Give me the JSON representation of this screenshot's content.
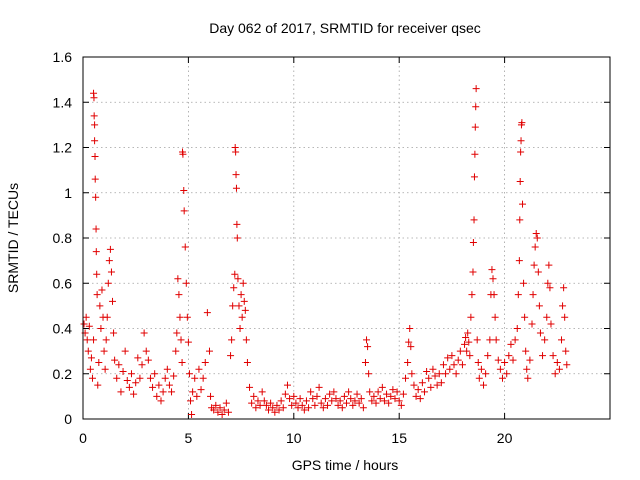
{
  "chart_data": {
    "type": "scatter",
    "title": "Day 062 of 2017, SRMTID for receiver qsec",
    "xlabel": "GPS time / hours",
    "ylabel": "SRMTID / TECUs",
    "xlim": [
      0,
      25
    ],
    "ylim": [
      0,
      1.6
    ],
    "x_ticks": [
      0,
      5,
      10,
      15,
      20
    ],
    "x_tick_labels": [
      "0",
      "5",
      "10",
      "15",
      "20"
    ],
    "y_ticks": [
      0,
      0.2,
      0.4,
      0.6,
      0.8,
      1,
      1.2,
      1.4,
      1.6
    ],
    "y_tick_labels": [
      "0",
      "0.2",
      "0.4",
      "0.6",
      "0.8",
      "1",
      "1.2",
      "1.4",
      "1.6"
    ],
    "grid": true,
    "marker": "plus",
    "color": "#e00000",
    "series": [
      {
        "name": "SRMTID",
        "points": [
          [
            0.05,
            0.42
          ],
          [
            0.1,
            0.38
          ],
          [
            0.15,
            0.45
          ],
          [
            0.2,
            0.35
          ],
          [
            0.25,
            0.3
          ],
          [
            0.3,
            0.41
          ],
          [
            0.35,
            0.22
          ],
          [
            0.4,
            0.27
          ],
          [
            0.45,
            0.18
          ],
          [
            0.5,
            0.35
          ],
          [
            0.5,
            1.44
          ],
          [
            0.52,
            1.42
          ],
          [
            0.53,
            1.34
          ],
          [
            0.55,
            1.3
          ],
          [
            0.55,
            1.23
          ],
          [
            0.57,
            1.16
          ],
          [
            0.58,
            1.06
          ],
          [
            0.6,
            0.98
          ],
          [
            0.62,
            0.84
          ],
          [
            0.63,
            0.74
          ],
          [
            0.65,
            0.64
          ],
          [
            0.67,
            0.55
          ],
          [
            0.7,
            0.15
          ],
          [
            0.75,
            0.25
          ],
          [
            0.8,
            0.5
          ],
          [
            0.85,
            0.4
          ],
          [
            0.9,
            0.57
          ],
          [
            0.95,
            0.45
          ],
          [
            1.0,
            0.3
          ],
          [
            1.05,
            0.22
          ],
          [
            1.1,
            0.35
          ],
          [
            1.15,
            0.45
          ],
          [
            1.2,
            0.6
          ],
          [
            1.25,
            0.7
          ],
          [
            1.3,
            0.75
          ],
          [
            1.35,
            0.65
          ],
          [
            1.4,
            0.52
          ],
          [
            1.45,
            0.38
          ],
          [
            1.5,
            0.26
          ],
          [
            1.6,
            0.18
          ],
          [
            1.7,
            0.24
          ],
          [
            1.8,
            0.12
          ],
          [
            1.9,
            0.21
          ],
          [
            2.0,
            0.3
          ],
          [
            2.1,
            0.17
          ],
          [
            2.2,
            0.14
          ],
          [
            2.3,
            0.2
          ],
          [
            2.4,
            0.11
          ],
          [
            2.5,
            0.16
          ],
          [
            2.6,
            0.27
          ],
          [
            2.7,
            0.18
          ],
          [
            2.8,
            0.24
          ],
          [
            2.9,
            0.38
          ],
          [
            3.0,
            0.3
          ],
          [
            3.1,
            0.26
          ],
          [
            3.2,
            0.18
          ],
          [
            3.3,
            0.14
          ],
          [
            3.4,
            0.2
          ],
          [
            3.5,
            0.1
          ],
          [
            3.6,
            0.15
          ],
          [
            3.7,
            0.08
          ],
          [
            3.8,
            0.12
          ],
          [
            3.9,
            0.18
          ],
          [
            4.0,
            0.22
          ],
          [
            4.1,
            0.15
          ],
          [
            4.2,
            0.12
          ],
          [
            4.3,
            0.19
          ],
          [
            4.4,
            0.3
          ],
          [
            4.45,
            0.38
          ],
          [
            4.5,
            0.62
          ],
          [
            4.55,
            0.55
          ],
          [
            4.6,
            0.45
          ],
          [
            4.65,
            0.35
          ],
          [
            4.7,
            0.25
          ],
          [
            4.72,
            1.18
          ],
          [
            4.74,
            1.17
          ],
          [
            4.78,
            1.01
          ],
          [
            4.8,
            0.92
          ],
          [
            4.85,
            0.76
          ],
          [
            4.9,
            0.6
          ],
          [
            4.95,
            0.45
          ],
          [
            5.0,
            0.34
          ],
          [
            5.05,
            0.2
          ],
          [
            5.1,
            0.08
          ],
          [
            5.15,
            0.02
          ],
          [
            5.2,
            0.12
          ],
          [
            5.3,
            0.18
          ],
          [
            5.4,
            0.1
          ],
          [
            5.5,
            0.22
          ],
          [
            5.6,
            0.13
          ],
          [
            5.7,
            0.18
          ],
          [
            5.8,
            0.25
          ],
          [
            5.9,
            0.47
          ],
          [
            6.0,
            0.3
          ],
          [
            6.05,
            0.1
          ],
          [
            6.1,
            0.05
          ],
          [
            6.2,
            0.04
          ],
          [
            6.3,
            0.06
          ],
          [
            6.4,
            0.03
          ],
          [
            6.5,
            0.05
          ],
          [
            6.6,
            0.02
          ],
          [
            6.7,
            0.04
          ],
          [
            6.8,
            0.07
          ],
          [
            6.9,
            0.03
          ],
          [
            7.0,
            0.28
          ],
          [
            7.05,
            0.35
          ],
          [
            7.1,
            0.5
          ],
          [
            7.15,
            0.58
          ],
          [
            7.2,
            0.64
          ],
          [
            7.22,
            1.2
          ],
          [
            7.24,
            1.18
          ],
          [
            7.26,
            1.08
          ],
          [
            7.28,
            1.02
          ],
          [
            7.3,
            0.86
          ],
          [
            7.32,
            0.8
          ],
          [
            7.35,
            0.62
          ],
          [
            7.4,
            0.5
          ],
          [
            7.45,
            0.4
          ],
          [
            7.5,
            0.55
          ],
          [
            7.55,
            0.45
          ],
          [
            7.6,
            0.6
          ],
          [
            7.65,
            0.52
          ],
          [
            7.7,
            0.48
          ],
          [
            7.75,
            0.35
          ],
          [
            7.8,
            0.25
          ],
          [
            7.9,
            0.14
          ],
          [
            8.0,
            0.07
          ],
          [
            8.1,
            0.1
          ],
          [
            8.2,
            0.05
          ],
          [
            8.3,
            0.08
          ],
          [
            8.4,
            0.06
          ],
          [
            8.5,
            0.12
          ],
          [
            8.6,
            0.08
          ],
          [
            8.7,
            0.06
          ],
          [
            8.8,
            0.04
          ],
          [
            8.9,
            0.07
          ],
          [
            9.0,
            0.05
          ],
          [
            9.1,
            0.03
          ],
          [
            9.2,
            0.06
          ],
          [
            9.3,
            0.04
          ],
          [
            9.4,
            0.08
          ],
          [
            9.5,
            0.05
          ],
          [
            9.6,
            0.11
          ],
          [
            9.7,
            0.15
          ],
          [
            9.8,
            0.09
          ],
          [
            9.9,
            0.06
          ],
          [
            10.0,
            0.1
          ],
          [
            10.1,
            0.07
          ],
          [
            10.2,
            0.05
          ],
          [
            10.3,
            0.09
          ],
          [
            10.4,
            0.06
          ],
          [
            10.5,
            0.04
          ],
          [
            10.6,
            0.08
          ],
          [
            10.7,
            0.05
          ],
          [
            10.8,
            0.12
          ],
          [
            10.9,
            0.09
          ],
          [
            11.0,
            0.06
          ],
          [
            11.1,
            0.1
          ],
          [
            11.2,
            0.14
          ],
          [
            11.3,
            0.07
          ],
          [
            11.4,
            0.05
          ],
          [
            11.5,
            0.09
          ],
          [
            11.6,
            0.06
          ],
          [
            11.7,
            0.11
          ],
          [
            11.8,
            0.08
          ],
          [
            11.9,
            0.12
          ],
          [
            12.0,
            0.09
          ],
          [
            12.1,
            0.06
          ],
          [
            12.2,
            0.08
          ],
          [
            12.3,
            0.05
          ],
          [
            12.4,
            0.1
          ],
          [
            12.5,
            0.07
          ],
          [
            12.6,
            0.12
          ],
          [
            12.7,
            0.09
          ],
          [
            12.8,
            0.06
          ],
          [
            12.9,
            0.08
          ],
          [
            13.0,
            0.11
          ],
          [
            13.1,
            0.07
          ],
          [
            13.2,
            0.09
          ],
          [
            13.3,
            0.05
          ],
          [
            13.4,
            0.25
          ],
          [
            13.45,
            0.35
          ],
          [
            13.5,
            0.32
          ],
          [
            13.55,
            0.2
          ],
          [
            13.6,
            0.12
          ],
          [
            13.7,
            0.08
          ],
          [
            13.8,
            0.1
          ],
          [
            13.9,
            0.07
          ],
          [
            14.0,
            0.12
          ],
          [
            14.1,
            0.09
          ],
          [
            14.2,
            0.14
          ],
          [
            14.3,
            0.08
          ],
          [
            14.4,
            0.11
          ],
          [
            14.5,
            0.07
          ],
          [
            14.6,
            0.1
          ],
          [
            14.7,
            0.13
          ],
          [
            14.8,
            0.09
          ],
          [
            14.9,
            0.12
          ],
          [
            15.0,
            0.08
          ],
          [
            15.1,
            0.06
          ],
          [
            15.2,
            0.11
          ],
          [
            15.3,
            0.18
          ],
          [
            15.4,
            0.25
          ],
          [
            15.45,
            0.34
          ],
          [
            15.5,
            0.4
          ],
          [
            15.55,
            0.32
          ],
          [
            15.6,
            0.2
          ],
          [
            15.7,
            0.15
          ],
          [
            15.8,
            0.1
          ],
          [
            15.9,
            0.13
          ],
          [
            16.0,
            0.09
          ],
          [
            16.1,
            0.16
          ],
          [
            16.2,
            0.12
          ],
          [
            16.3,
            0.21
          ],
          [
            16.4,
            0.18
          ],
          [
            16.5,
            0.14
          ],
          [
            16.6,
            0.22
          ],
          [
            16.7,
            0.19
          ],
          [
            16.8,
            0.15
          ],
          [
            16.9,
            0.2
          ],
          [
            17.0,
            0.16
          ],
          [
            17.1,
            0.24
          ],
          [
            17.2,
            0.2
          ],
          [
            17.3,
            0.27
          ],
          [
            17.4,
            0.22
          ],
          [
            17.5,
            0.28
          ],
          [
            17.6,
            0.24
          ],
          [
            17.7,
            0.2
          ],
          [
            17.8,
            0.26
          ],
          [
            17.9,
            0.3
          ],
          [
            18.0,
            0.24
          ],
          [
            18.1,
            0.33
          ],
          [
            18.15,
            0.36
          ],
          [
            18.2,
            0.3
          ],
          [
            18.25,
            0.38
          ],
          [
            18.3,
            0.34
          ],
          [
            18.35,
            0.28
          ],
          [
            18.4,
            0.45
          ],
          [
            18.45,
            0.55
          ],
          [
            18.5,
            0.65
          ],
          [
            18.52,
            0.78
          ],
          [
            18.55,
            0.88
          ],
          [
            18.57,
            1.07
          ],
          [
            18.59,
            1.17
          ],
          [
            18.61,
            1.29
          ],
          [
            18.63,
            1.38
          ],
          [
            18.65,
            1.46
          ],
          [
            18.7,
            0.35
          ],
          [
            18.75,
            0.25
          ],
          [
            18.8,
            0.18
          ],
          [
            18.9,
            0.22
          ],
          [
            19.0,
            0.15
          ],
          [
            19.1,
            0.2
          ],
          [
            19.2,
            0.28
          ],
          [
            19.3,
            0.35
          ],
          [
            19.35,
            0.55
          ],
          [
            19.4,
            0.66
          ],
          [
            19.45,
            0.62
          ],
          [
            19.5,
            0.55
          ],
          [
            19.55,
            0.45
          ],
          [
            19.6,
            0.35
          ],
          [
            19.7,
            0.26
          ],
          [
            19.8,
            0.22
          ],
          [
            19.9,
            0.18
          ],
          [
            20.0,
            0.25
          ],
          [
            20.1,
            0.2
          ],
          [
            20.2,
            0.28
          ],
          [
            20.3,
            0.33
          ],
          [
            20.4,
            0.26
          ],
          [
            20.5,
            0.35
          ],
          [
            20.6,
            0.4
          ],
          [
            20.65,
            0.55
          ],
          [
            20.7,
            0.7
          ],
          [
            20.72,
            0.88
          ],
          [
            20.74,
            1.05
          ],
          [
            20.76,
            1.18
          ],
          [
            20.78,
            1.23
          ],
          [
            20.8,
            1.3
          ],
          [
            20.82,
            1.31
          ],
          [
            20.85,
            0.95
          ],
          [
            20.9,
            0.6
          ],
          [
            20.95,
            0.45
          ],
          [
            21.0,
            0.3
          ],
          [
            21.05,
            0.22
          ],
          [
            21.1,
            0.18
          ],
          [
            21.2,
            0.26
          ],
          [
            21.3,
            0.42
          ],
          [
            21.35,
            0.55
          ],
          [
            21.4,
            0.68
          ],
          [
            21.45,
            0.76
          ],
          [
            21.5,
            0.82
          ],
          [
            21.55,
            0.8
          ],
          [
            21.6,
            0.65
          ],
          [
            21.65,
            0.5
          ],
          [
            21.7,
            0.38
          ],
          [
            21.8,
            0.28
          ],
          [
            21.9,
            0.35
          ],
          [
            22.0,
            0.45
          ],
          [
            22.05,
            0.6
          ],
          [
            22.1,
            0.68
          ],
          [
            22.15,
            0.58
          ],
          [
            22.2,
            0.42
          ],
          [
            22.3,
            0.28
          ],
          [
            22.4,
            0.2
          ],
          [
            22.5,
            0.25
          ],
          [
            22.6,
            0.22
          ],
          [
            22.7,
            0.35
          ],
          [
            22.75,
            0.5
          ],
          [
            22.8,
            0.58
          ],
          [
            22.85,
            0.45
          ],
          [
            22.9,
            0.3
          ],
          [
            22.95,
            0.24
          ]
        ]
      }
    ]
  }
}
